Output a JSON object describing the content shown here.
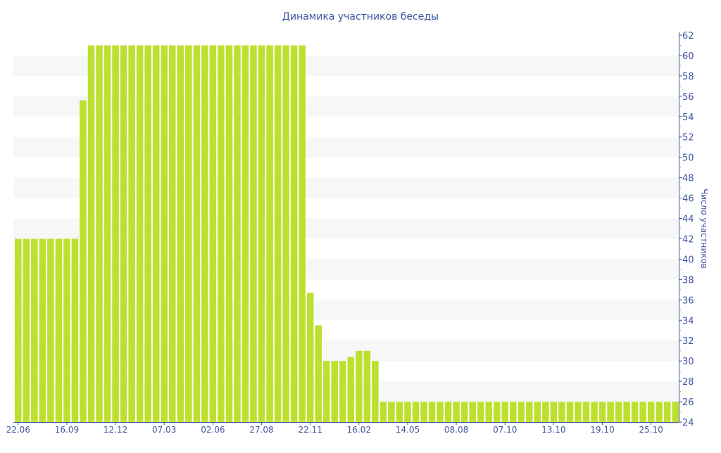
{
  "chart_data": {
    "type": "bar",
    "title": "Динамика участников беседы",
    "xlabel": "",
    "ylabel": "Число участников",
    "ylim": [
      24,
      62
    ],
    "yticks": [
      24,
      26,
      28,
      30,
      32,
      34,
      36,
      38,
      40,
      42,
      44,
      46,
      48,
      50,
      52,
      54,
      56,
      58,
      60,
      62
    ],
    "xtick_labels": [
      "22.06",
      "16.09",
      "12.12",
      "07.03",
      "02.06",
      "27.08",
      "22.11",
      "16.02",
      "14.05",
      "08.08",
      "07.10",
      "13.10",
      "19.10",
      "25.10"
    ],
    "xtick_every": 6,
    "grid": "alternating horizontal bands",
    "y_axis_position": "right",
    "series": [
      {
        "name": "Число участников",
        "color": "#bde030",
        "values": [
          42,
          42,
          42,
          42,
          42,
          42,
          42,
          42,
          55.6,
          61,
          61,
          61,
          61,
          61,
          61,
          61,
          61,
          61,
          61,
          61,
          61,
          61,
          61,
          61,
          61,
          61,
          61,
          61,
          61,
          61,
          61,
          61,
          61,
          61,
          61,
          61,
          36.7,
          33.5,
          30,
          30,
          30,
          30.4,
          31,
          31,
          30,
          26,
          26,
          26,
          26,
          26,
          26,
          26,
          26,
          26,
          26,
          26,
          26,
          26,
          26,
          26,
          26,
          26,
          26,
          26,
          26,
          26,
          26,
          26,
          26,
          26,
          26,
          26,
          26,
          26,
          26,
          26,
          26,
          26,
          26,
          26,
          26,
          26
        ]
      }
    ],
    "colors": {
      "axis": "#3f55a0",
      "band": "#f7f7f7",
      "bar": "#bde030"
    }
  }
}
